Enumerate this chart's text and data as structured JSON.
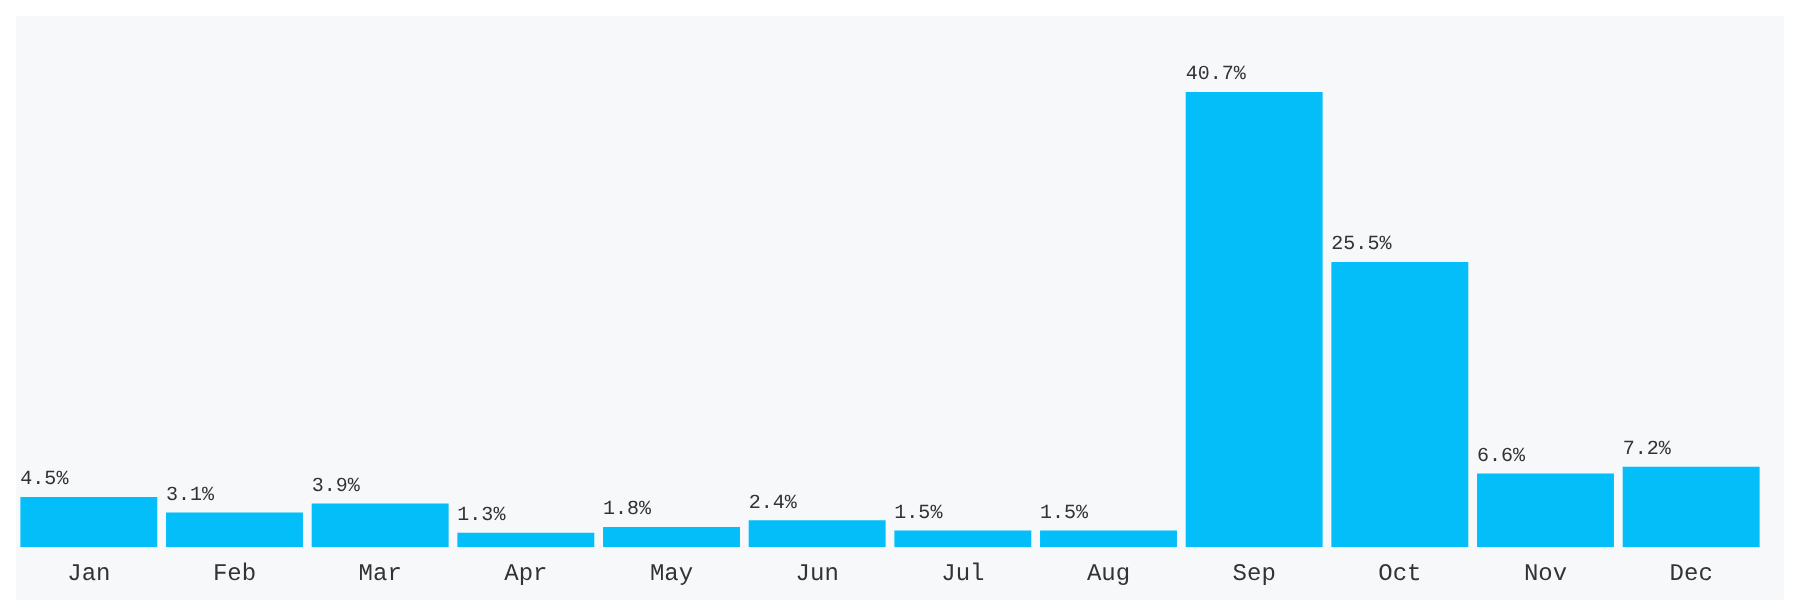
{
  "chart_data": {
    "type": "bar",
    "categories": [
      "Jan",
      "Feb",
      "Mar",
      "Apr",
      "May",
      "Jun",
      "Jul",
      "Aug",
      "Sep",
      "Oct",
      "Nov",
      "Dec"
    ],
    "values": [
      4.5,
      3.1,
      3.9,
      1.3,
      1.8,
      2.4,
      1.5,
      1.5,
      40.7,
      25.5,
      6.6,
      7.2
    ],
    "value_labels": [
      "4.5%",
      "3.1%",
      "3.9%",
      "1.3%",
      "1.8%",
      "2.4%",
      "1.5%",
      "1.5%",
      "40.7%",
      "25.5%",
      "6.6%",
      "7.2%"
    ],
    "color": "#04befa",
    "grid": false,
    "legend": false,
    "tick_labels": "x"
  }
}
